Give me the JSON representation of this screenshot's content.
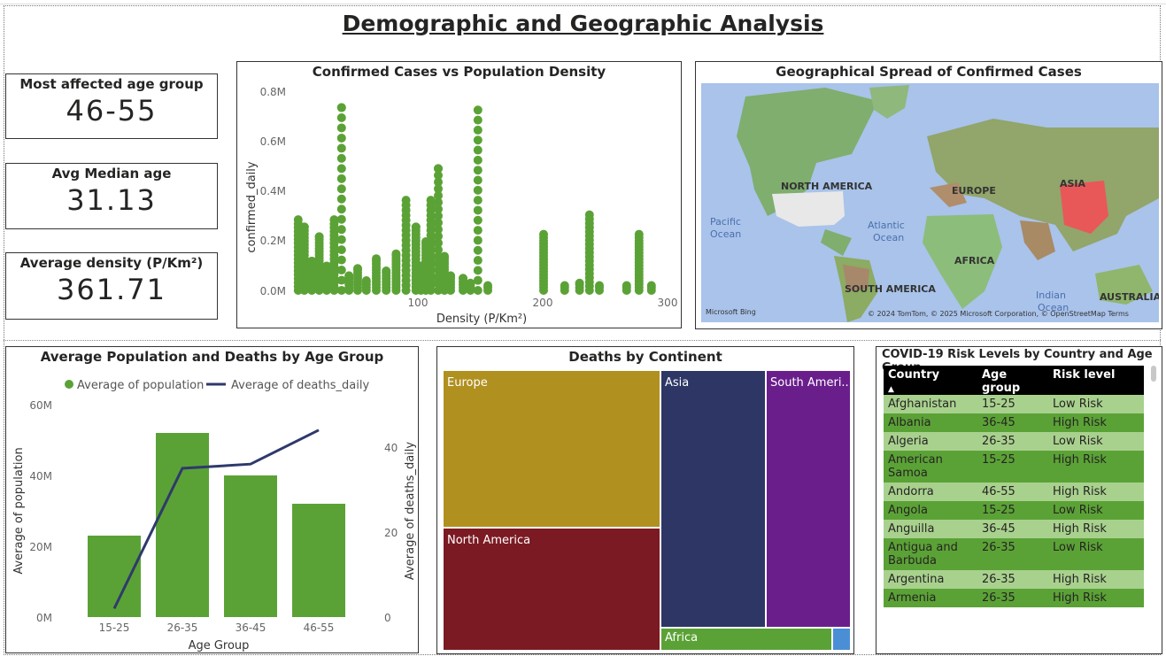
{
  "page": {
    "title": "Demographic and Geographic Analysis"
  },
  "kpis": [
    {
      "label": "Most affected age group",
      "value": "46-55"
    },
    {
      "label": "Avg Median age",
      "value": "31.13"
    },
    {
      "label": "Average density (P/Km²)",
      "value": "361.71"
    }
  ],
  "scatter": {
    "title": "Confirmed Cases vs Population Density",
    "xlabel": "Density (P/Km²)",
    "ylabel": "confirmed_daily",
    "xticks": [
      "100",
      "200",
      "300"
    ],
    "yticks": [
      "0.0M",
      "0.2M",
      "0.4M",
      "0.6M",
      "0.8M"
    ]
  },
  "map": {
    "title": "Geographical Spread of Confirmed Cases",
    "labels": [
      "NORTH AMERICA",
      "EUROPE",
      "ASIA",
      "AFRICA",
      "SOUTH AMERICA",
      "AUSTRALIA",
      "Pacific",
      "Ocean",
      "Atlantic",
      "Ocean",
      "Indian",
      "Ocean"
    ],
    "attribution": "© 2024 TomTom, © 2025 Microsoft Corporation, © OpenStreetMap Terms",
    "bing": "Microsoft Bing"
  },
  "combo": {
    "title": "Average Population and Deaths by Age Group",
    "legend": [
      "Average of population",
      "Average of deaths_daily"
    ],
    "xlabel": "Age Group",
    "ylabel_left": "Average of population",
    "ylabel_right": "Average of deaths_daily",
    "yticks_left": [
      "0M",
      "20M",
      "40M",
      "60M"
    ],
    "yticks_right": [
      "0",
      "20",
      "40"
    ]
  },
  "treemap": {
    "title": "Deaths by Continent",
    "cells": [
      "Europe",
      "North America",
      "Asia",
      "South Ameri...",
      "Africa",
      ""
    ]
  },
  "risk_table": {
    "title": "COVID-19 Risk Levels by Country and Age Group",
    "headers": [
      "Country",
      "Age group",
      "Risk level"
    ],
    "rows": [
      [
        "Afghanistan",
        "15-25",
        "Low Risk"
      ],
      [
        "Albania",
        "36-45",
        "High Risk"
      ],
      [
        "Algeria",
        "26-35",
        "Low Risk"
      ],
      [
        "American Samoa",
        "15-25",
        "High Risk"
      ],
      [
        "Andorra",
        "46-55",
        "High Risk"
      ],
      [
        "Angola",
        "15-25",
        "Low Risk"
      ],
      [
        "Anguilla",
        "36-45",
        "High Risk"
      ],
      [
        "Antigua and Barbuda",
        "26-35",
        "Low Risk"
      ],
      [
        "Argentina",
        "26-35",
        "High Risk"
      ],
      [
        "Armenia",
        "26-35",
        "High Risk"
      ]
    ]
  },
  "chart_data": [
    {
      "type": "scatter",
      "title": "Confirmed Cases vs Population Density",
      "xlabel": "Density (P/Km²)",
      "ylabel": "confirmed_daily",
      "xlim": [
        5,
        305
      ],
      "ylim": [
        0,
        850000
      ],
      "color": "#5ba236",
      "columns": [
        {
          "x": 7,
          "ymax": 290000
        },
        {
          "x": 12,
          "ymax": 260000
        },
        {
          "x": 18,
          "ymax": 120000
        },
        {
          "x": 24,
          "ymax": 220000
        },
        {
          "x": 30,
          "ymax": 100000
        },
        {
          "x": 36,
          "ymax": 290000
        },
        {
          "x": 42,
          "ymax": 750000
        },
        {
          "x": 48,
          "ymax": 60000
        },
        {
          "x": 55,
          "ymax": 90000
        },
        {
          "x": 62,
          "ymax": 40000
        },
        {
          "x": 70,
          "ymax": 130000
        },
        {
          "x": 78,
          "ymax": 80000
        },
        {
          "x": 86,
          "ymax": 150000
        },
        {
          "x": 94,
          "ymax": 370000
        },
        {
          "x": 102,
          "ymax": 260000
        },
        {
          "x": 106,
          "ymax": 100000
        },
        {
          "x": 110,
          "ymax": 200000
        },
        {
          "x": 114,
          "ymax": 370000
        },
        {
          "x": 120,
          "ymax": 500000
        },
        {
          "x": 125,
          "ymax": 140000
        },
        {
          "x": 130,
          "ymax": 60000
        },
        {
          "x": 140,
          "ymax": 50000
        },
        {
          "x": 146,
          "ymax": 30000
        },
        {
          "x": 152,
          "ymax": 740000
        },
        {
          "x": 160,
          "ymax": 20000
        },
        {
          "x": 205,
          "ymax": 230000
        },
        {
          "x": 222,
          "ymax": 20000
        },
        {
          "x": 234,
          "ymax": 30000
        },
        {
          "x": 242,
          "ymax": 310000
        },
        {
          "x": 250,
          "ymax": 20000
        },
        {
          "x": 272,
          "ymax": 20000
        },
        {
          "x": 282,
          "ymax": 230000
        },
        {
          "x": 292,
          "ymax": 20000
        }
      ]
    },
    {
      "type": "bar",
      "title": "Average Population and Deaths by Age Group",
      "categories": [
        "15-25",
        "26-35",
        "36-45",
        "46-55"
      ],
      "xlabel": "Age Group",
      "series": [
        {
          "name": "Average of population",
          "type": "bar",
          "axis": "left",
          "values": [
            23000000,
            52000000,
            40000000,
            32000000
          ],
          "color": "#5ba236"
        },
        {
          "name": "Average of deaths_daily",
          "type": "line",
          "axis": "right",
          "values": [
            2,
            35,
            36,
            44
          ],
          "color": "#2e3a6b"
        }
      ],
      "ylim_left": [
        0,
        60000000
      ],
      "ylim_right": [
        0,
        50
      ],
      "ylabel_left": "Average of population",
      "ylabel_right": "Average of deaths_daily"
    },
    {
      "type": "treemap",
      "title": "Deaths by Continent",
      "items": [
        {
          "name": "Europe",
          "value": 37,
          "color": "#b0901f"
        },
        {
          "name": "North America",
          "value": 26,
          "color": "#7b1a22"
        },
        {
          "name": "Asia",
          "value": 20,
          "color": "#2e3666"
        },
        {
          "name": "South America",
          "value": 15,
          "color": "#6a1e8c"
        },
        {
          "name": "Africa",
          "value": 3,
          "color": "#5ba236"
        },
        {
          "name": "Oceania",
          "value": 0.4,
          "color": "#4a8fd6"
        }
      ]
    }
  ]
}
